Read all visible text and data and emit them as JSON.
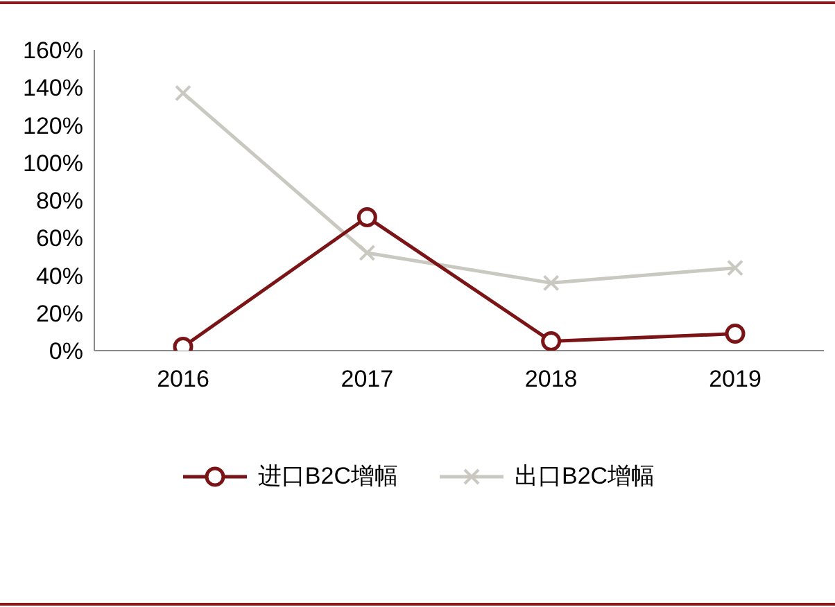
{
  "chart_data": {
    "type": "line",
    "categories": [
      "2016",
      "2017",
      "2018",
      "2019"
    ],
    "series": [
      {
        "name": "进口B2C增幅",
        "color": "#7b1416",
        "marker": "circle",
        "values": [
          2,
          71,
          5,
          9
        ]
      },
      {
        "name": "出口B2C增幅",
        "color": "#c9c9c1",
        "marker": "cross",
        "values": [
          137,
          52,
          36,
          44
        ]
      }
    ],
    "ylim": [
      0,
      160
    ],
    "yticks": [
      {
        "value": 0,
        "label": "0%"
      },
      {
        "value": 20,
        "label": "20%"
      },
      {
        "value": 40,
        "label": "40%"
      },
      {
        "value": 60,
        "label": "60%"
      },
      {
        "value": 80,
        "label": "80%"
      },
      {
        "value": 100,
        "label": "100%"
      },
      {
        "value": 120,
        "label": "120%"
      },
      {
        "value": 140,
        "label": "140%"
      },
      {
        "value": 160,
        "label": "160%"
      }
    ],
    "grid": false,
    "legend": "bottom",
    "line_style": "solid"
  }
}
